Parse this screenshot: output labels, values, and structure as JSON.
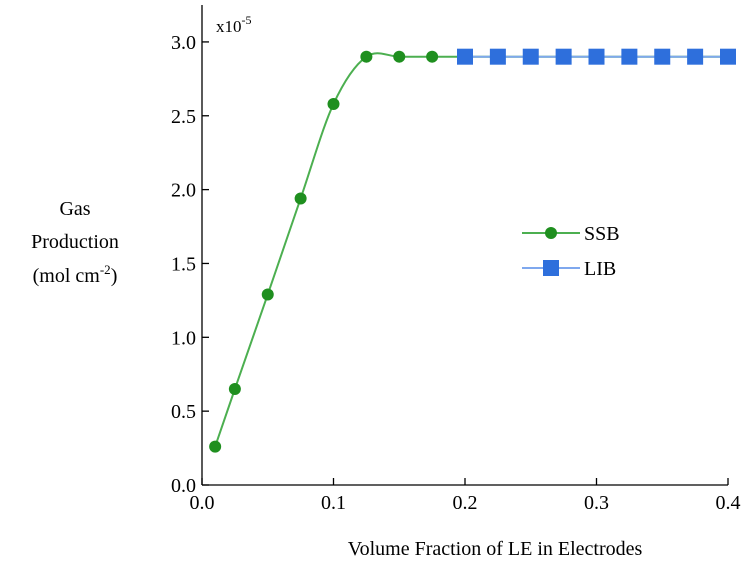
{
  "chart_data": {
    "type": "line",
    "xlabel": "Volume Fraction of LE in Electrodes",
    "ylabel": {
      "lines": [
        "Gas",
        "Production"
      ],
      "unit": "(mol cm",
      "unit_sup": "-2",
      "unit_end": ")"
    },
    "y_multiplier": "x10",
    "y_multiplier_sup": "-5",
    "xlim": [
      0,
      0.4
    ],
    "xticks": [
      {
        "value": 0,
        "label": "0.0"
      },
      0.1,
      0.2,
      0.3,
      0.4
    ],
    "ylim": [
      0,
      3.25
    ],
    "yticks": [
      {
        "value": 0,
        "label": "0.0"
      },
      0.5,
      {
        "value": 1,
        "label": "1.0"
      },
      1.5,
      {
        "value": 2,
        "label": "2.0"
      },
      2.5,
      {
        "value": 3,
        "label": "3.0"
      }
    ],
    "legend": "right",
    "series": [
      {
        "name": "SSB",
        "color": "#1f8f1f",
        "line_color": "#4caf50",
        "marker": "circle",
        "x": [
          0.01,
          0.025,
          0.05,
          0.075,
          0.1,
          0.125,
          0.15,
          0.175,
          0.2,
          0.225,
          0.25,
          0.275,
          0.3,
          0.325,
          0.35,
          0.375,
          0.4
        ],
        "values": [
          0.26,
          0.65,
          1.29,
          1.94,
          2.58,
          2.9,
          2.9,
          2.9,
          2.9,
          2.9,
          2.9,
          2.9,
          2.9,
          2.9,
          2.9,
          2.9,
          2.9
        ]
      },
      {
        "name": "LIB",
        "color": "#2e6fdc",
        "line_color": "#7fa8ee",
        "marker": "square",
        "x": [
          0.2,
          0.225,
          0.25,
          0.275,
          0.3,
          0.325,
          0.35,
          0.375,
          0.4
        ],
        "values": [
          2.9,
          2.9,
          2.9,
          2.9,
          2.9,
          2.9,
          2.9,
          2.9,
          2.9
        ]
      }
    ]
  }
}
